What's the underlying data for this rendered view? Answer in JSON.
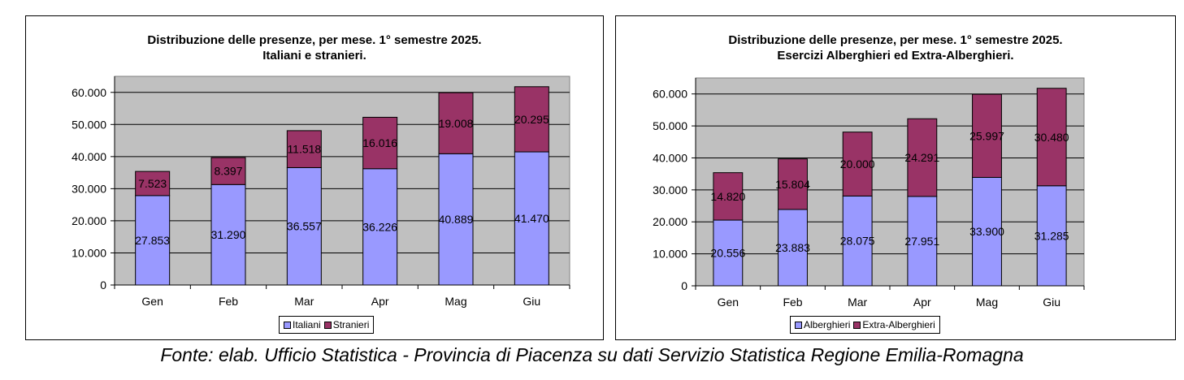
{
  "chart_data": [
    {
      "type": "bar",
      "stacked": true,
      "title_line1": "Distribuzione delle presenze, per mese.  1° semestre 2025.",
      "title_line2": "Italiani e stranieri.",
      "categories": [
        "Gen",
        "Feb",
        "Mar",
        "Apr",
        "Mag",
        "Giu"
      ],
      "series": [
        {
          "name": "Italiani",
          "values": [
            27853,
            31290,
            36557,
            36226,
            40889,
            41470
          ],
          "color": "#9999ff"
        },
        {
          "name": "Stranieri",
          "values": [
            7523,
            8397,
            11518,
            16016,
            19008,
            20295
          ],
          "color": "#993366"
        }
      ],
      "value_labels": [
        [
          "27.853",
          "31.290",
          "36.557",
          "36.226",
          "40.889",
          "41.470"
        ],
        [
          "7.523",
          "8.397",
          "11.518",
          "16.016",
          "19.008",
          "20.295"
        ]
      ],
      "ylim": [
        0,
        65000
      ],
      "yticks": [
        0,
        10000,
        20000,
        30000,
        40000,
        50000,
        60000
      ],
      "ytick_labels": [
        "0",
        "10.000",
        "20.000",
        "30.000",
        "40.000",
        "50.000",
        "60.000"
      ],
      "grid": true,
      "plot_background": "#c0c0c0",
      "legend_position": "bottom"
    },
    {
      "type": "bar",
      "stacked": true,
      "title_line1": "Distribuzione delle presenze, per mese.  1° semestre 2025.",
      "title_line2": "Esercizi Alberghieri ed Extra-Alberghieri.",
      "categories": [
        "Gen",
        "Feb",
        "Mar",
        "Apr",
        "Mag",
        "Giu"
      ],
      "series": [
        {
          "name": "Alberghieri",
          "values": [
            20556,
            23883,
            28075,
            27951,
            33900,
            31285
          ],
          "color": "#9999ff"
        },
        {
          "name": "Extra-Alberghieri",
          "values": [
            14820,
            15804,
            20000,
            24291,
            25997,
            30480
          ],
          "color": "#993366"
        }
      ],
      "value_labels": [
        [
          "20.556",
          "23.883",
          "28.075",
          "27.951",
          "33.900",
          "31.285"
        ],
        [
          "14.820",
          "15.804",
          "20.000",
          "24.291",
          "25.997",
          "30.480"
        ]
      ],
      "ylim": [
        0,
        65000
      ],
      "yticks": [
        0,
        10000,
        20000,
        30000,
        40000,
        50000,
        60000
      ],
      "ytick_labels": [
        "0",
        "10.000",
        "20.000",
        "30.000",
        "40.000",
        "50.000",
        "60.000"
      ],
      "grid": true,
      "plot_background": "#c0c0c0",
      "legend_position": "bottom"
    }
  ],
  "source": "Fonte: elab. Ufficio Statistica - Provincia di Piacenza su dati Servizio Statistica Regione Emilia-Romagna"
}
